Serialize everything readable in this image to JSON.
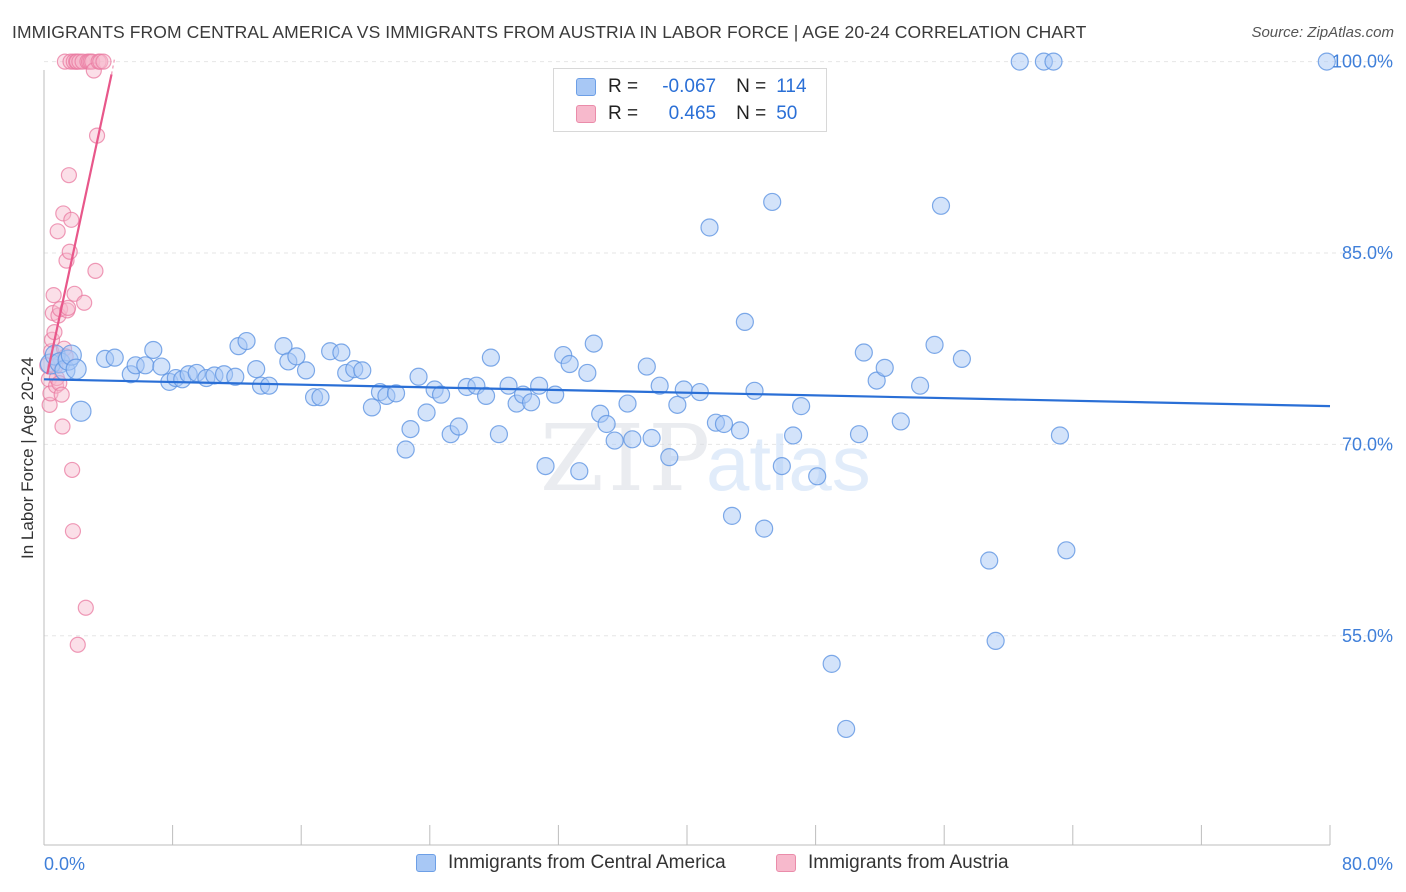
{
  "title": "IMMIGRANTS FROM CENTRAL AMERICA VS IMMIGRANTS FROM AUSTRIA IN LABOR FORCE | AGE 20-24 CORRELATION CHART",
  "source": "Source: ZipAtlas.com",
  "watermark": {
    "zip": "ZIP",
    "atlas": "atlas"
  },
  "legend": {
    "rows": [
      {
        "r_label": "R =",
        "r_value": "-0.067",
        "n_label": "N =",
        "n_value": "114",
        "color": "#6d9fe6"
      },
      {
        "r_label": "R =",
        "r_value": "0.465",
        "n_label": "N =",
        "n_value": "50",
        "color": "#ea8caa"
      }
    ]
  },
  "colors": {
    "blue_fill": "#a8c8f5",
    "blue_stroke": "#5f95e2",
    "blue_line": "#2a6fd6",
    "pink_fill": "#f7b9cc",
    "pink_stroke": "#ea7aa0",
    "pink_line": "#e8578a",
    "tick_text": "#3f7fd9",
    "grid": "#e6e6e6"
  },
  "chart_data": {
    "type": "scatter",
    "xlabel": "",
    "ylabel": "In Labor Force | Age 20-24",
    "xlim": [
      0,
      80
    ],
    "ylim": [
      40,
      101
    ],
    "x_tick_labels": [
      "0.0%",
      "80.0%"
    ],
    "y_ticks": [
      55,
      70,
      85,
      100
    ],
    "y_tick_labels": [
      "55.0%",
      "70.0%",
      "85.0%",
      "100.0%"
    ],
    "grid": "horizontal dashed",
    "legend_position": "bottom",
    "series": [
      {
        "name": "Immigrants from Central America",
        "trend": [
          [
            0,
            75.1
          ],
          [
            80,
            73.0
          ]
        ],
        "points": [
          [
            0.4,
            76.3
          ],
          [
            0.7,
            77.0
          ],
          [
            1.0,
            76.4
          ],
          [
            1.3,
            75.8
          ],
          [
            1.5,
            76.6
          ],
          [
            1.7,
            77.0
          ],
          [
            2.0,
            75.9
          ],
          [
            2.3,
            72.6
          ],
          [
            3.8,
            76.7
          ],
          [
            4.4,
            76.8
          ],
          [
            5.4,
            75.5
          ],
          [
            5.7,
            76.2
          ],
          [
            6.3,
            76.2
          ],
          [
            6.8,
            77.4
          ],
          [
            7.3,
            76.1
          ],
          [
            7.8,
            74.9
          ],
          [
            8.2,
            75.2
          ],
          [
            8.6,
            75.1
          ],
          [
            9.0,
            75.5
          ],
          [
            9.5,
            75.6
          ],
          [
            10.1,
            75.2
          ],
          [
            10.6,
            75.4
          ],
          [
            11.2,
            75.5
          ],
          [
            11.9,
            75.3
          ],
          [
            12.1,
            77.7
          ],
          [
            12.6,
            78.1
          ],
          [
            13.2,
            75.9
          ],
          [
            13.5,
            74.6
          ],
          [
            14.0,
            74.6
          ],
          [
            14.9,
            77.7
          ],
          [
            15.2,
            76.5
          ],
          [
            15.7,
            76.9
          ],
          [
            16.3,
            75.8
          ],
          [
            16.8,
            73.7
          ],
          [
            17.2,
            73.7
          ],
          [
            17.8,
            77.3
          ],
          [
            18.5,
            77.2
          ],
          [
            18.8,
            75.6
          ],
          [
            19.3,
            75.9
          ],
          [
            19.8,
            75.8
          ],
          [
            20.4,
            72.9
          ],
          [
            20.9,
            74.1
          ],
          [
            21.3,
            73.8
          ],
          [
            21.9,
            74.0
          ],
          [
            22.5,
            69.6
          ],
          [
            22.8,
            71.2
          ],
          [
            23.3,
            75.3
          ],
          [
            23.8,
            72.5
          ],
          [
            24.3,
            74.3
          ],
          [
            24.7,
            73.9
          ],
          [
            25.3,
            70.8
          ],
          [
            25.8,
            71.4
          ],
          [
            26.3,
            74.5
          ],
          [
            26.9,
            74.6
          ],
          [
            27.5,
            73.8
          ],
          [
            27.8,
            76.8
          ],
          [
            28.3,
            70.8
          ],
          [
            28.9,
            74.6
          ],
          [
            29.4,
            73.2
          ],
          [
            29.8,
            73.9
          ],
          [
            30.3,
            73.3
          ],
          [
            30.8,
            74.6
          ],
          [
            31.2,
            68.3
          ],
          [
            31.8,
            73.9
          ],
          [
            32.3,
            77.0
          ],
          [
            32.7,
            76.3
          ],
          [
            33.3,
            67.9
          ],
          [
            33.8,
            75.6
          ],
          [
            34.2,
            77.9
          ],
          [
            34.6,
            72.4
          ],
          [
            35.0,
            71.6
          ],
          [
            35.5,
            70.3
          ],
          [
            36.3,
            73.2
          ],
          [
            36.6,
            70.4
          ],
          [
            37.5,
            76.1
          ],
          [
            37.8,
            70.5
          ],
          [
            38.3,
            74.6
          ],
          [
            38.9,
            69.0
          ],
          [
            39.4,
            73.1
          ],
          [
            39.8,
            74.3
          ],
          [
            40.8,
            74.1
          ],
          [
            41.4,
            87.0
          ],
          [
            41.8,
            71.7
          ],
          [
            42.3,
            71.6
          ],
          [
            42.8,
            64.4
          ],
          [
            43.3,
            71.1
          ],
          [
            43.6,
            79.6
          ],
          [
            44.2,
            74.2
          ],
          [
            44.8,
            63.4
          ],
          [
            45.3,
            89.0
          ],
          [
            45.9,
            68.3
          ],
          [
            46.6,
            70.7
          ],
          [
            47.1,
            73.0
          ],
          [
            48.1,
            67.5
          ],
          [
            49.0,
            52.8
          ],
          [
            49.9,
            47.7
          ],
          [
            50.7,
            70.8
          ],
          [
            51.0,
            77.2
          ],
          [
            51.8,
            75.0
          ],
          [
            52.3,
            76.0
          ],
          [
            53.3,
            71.8
          ],
          [
            54.5,
            74.6
          ],
          [
            55.4,
            77.8
          ],
          [
            55.8,
            88.7
          ],
          [
            57.1,
            76.7
          ],
          [
            58.8,
            60.9
          ],
          [
            59.2,
            54.6
          ],
          [
            60.7,
            100.0
          ],
          [
            62.2,
            100.0
          ],
          [
            62.8,
            100.0
          ],
          [
            63.2,
            70.7
          ],
          [
            63.6,
            61.7
          ],
          [
            79.8,
            100.0
          ]
        ]
      },
      {
        "name": "Immigrants from Austria",
        "trend": [
          [
            0.2,
            75.5
          ],
          [
            4.2,
            99.0
          ]
        ],
        "points": [
          [
            0.2,
            76.2
          ],
          [
            0.3,
            75.1
          ],
          [
            0.35,
            73.1
          ],
          [
            0.4,
            74.0
          ],
          [
            0.45,
            77.3
          ],
          [
            0.5,
            78.2
          ],
          [
            0.55,
            80.3
          ],
          [
            0.6,
            81.7
          ],
          [
            0.65,
            78.8
          ],
          [
            0.7,
            76.1
          ],
          [
            0.75,
            74.6
          ],
          [
            0.8,
            75.2
          ],
          [
            0.85,
            86.7
          ],
          [
            0.9,
            80.1
          ],
          [
            0.95,
            74.8
          ],
          [
            1.0,
            80.6
          ],
          [
            1.1,
            73.9
          ],
          [
            1.15,
            71.4
          ],
          [
            1.2,
            88.1
          ],
          [
            1.25,
            77.5
          ],
          [
            1.3,
            100.0
          ],
          [
            1.35,
            76.9
          ],
          [
            1.4,
            84.4
          ],
          [
            1.45,
            80.5
          ],
          [
            1.5,
            80.7
          ],
          [
            1.55,
            91.1
          ],
          [
            1.6,
            85.1
          ],
          [
            1.65,
            100.0
          ],
          [
            1.7,
            87.6
          ],
          [
            1.75,
            68.0
          ],
          [
            1.8,
            63.2
          ],
          [
            1.85,
            100.0
          ],
          [
            1.9,
            81.8
          ],
          [
            2.0,
            100.0
          ],
          [
            2.05,
            100.0
          ],
          [
            2.1,
            54.3
          ],
          [
            2.2,
            100.0
          ],
          [
            2.4,
            100.0
          ],
          [
            2.5,
            81.1
          ],
          [
            2.6,
            57.2
          ],
          [
            2.7,
            100.0
          ],
          [
            2.8,
            100.0
          ],
          [
            2.9,
            100.0
          ],
          [
            3.0,
            100.0
          ],
          [
            3.1,
            99.3
          ],
          [
            3.2,
            83.6
          ],
          [
            3.3,
            94.2
          ],
          [
            3.4,
            100.0
          ],
          [
            3.5,
            100.0
          ],
          [
            3.7,
            100.0
          ]
        ]
      }
    ]
  }
}
